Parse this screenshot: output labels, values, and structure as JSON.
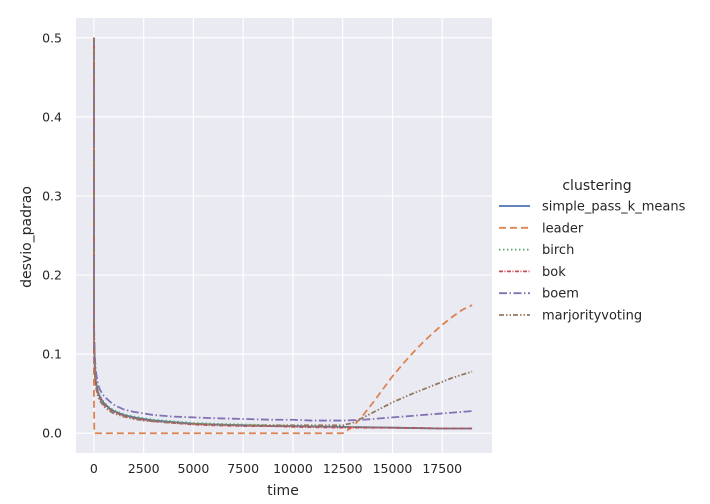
{
  "chart_data": {
    "type": "line",
    "title": "",
    "xlabel": "time",
    "ylabel": "desvio_padrao",
    "xlim": [
      -900,
      20000
    ],
    "ylim": [
      -0.025,
      0.525
    ],
    "xticks": [
      0,
      2500,
      5000,
      7500,
      10000,
      12500,
      15000,
      17500
    ],
    "yticks": [
      0.0,
      0.1,
      0.2,
      0.3,
      0.4,
      0.5
    ],
    "xtick_labels": [
      "0",
      "2500",
      "5000",
      "7500",
      "10000",
      "12500",
      "15000",
      "17500"
    ],
    "ytick_labels": [
      "0.0",
      "0.1",
      "0.2",
      "0.3",
      "0.4",
      "0.5"
    ],
    "grid": true,
    "background": "#eaeaf2",
    "legend": {
      "title": "clustering",
      "position": "right"
    },
    "series": [
      {
        "name": "simple_pass_k_means",
        "color": "#4c72b0",
        "dash": "solid",
        "x": [
          0,
          0,
          50,
          100,
          200,
          300,
          500,
          800,
          1000,
          1500,
          2000,
          2500,
          3000,
          4000,
          5000,
          6000,
          7500,
          9000,
          10000,
          12500,
          15000,
          17500,
          19000
        ],
        "y": [
          0.5,
          0.12,
          0.08,
          0.065,
          0.052,
          0.046,
          0.038,
          0.031,
          0.028,
          0.023,
          0.02,
          0.018,
          0.016,
          0.014,
          0.012,
          0.011,
          0.01,
          0.009,
          0.009,
          0.008,
          0.007,
          0.006,
          0.006
        ]
      },
      {
        "name": "leader",
        "color": "#dd8452",
        "dash": "7,4",
        "x": [
          0,
          0,
          20,
          12500,
          13000,
          13500,
          14000,
          14500,
          15000,
          15500,
          16000,
          16500,
          17000,
          17500,
          18000,
          18500,
          19000
        ],
        "y": [
          0.5,
          0.05,
          0.0,
          0.0,
          0.008,
          0.022,
          0.038,
          0.055,
          0.072,
          0.087,
          0.101,
          0.114,
          0.126,
          0.137,
          0.147,
          0.156,
          0.162
        ]
      },
      {
        "name": "birch",
        "color": "#55a868",
        "dash": "1.5,2.5",
        "x": [
          0,
          0,
          50,
          100,
          200,
          300,
          500,
          800,
          1000,
          1500,
          2000,
          2500,
          3000,
          4000,
          5000,
          6000,
          7500,
          9000,
          10000,
          12500,
          15000,
          17500,
          19000
        ],
        "y": [
          0.5,
          0.13,
          0.085,
          0.068,
          0.054,
          0.047,
          0.039,
          0.032,
          0.029,
          0.024,
          0.021,
          0.019,
          0.017,
          0.015,
          0.013,
          0.012,
          0.011,
          0.01,
          0.009,
          0.008,
          0.007,
          0.006,
          0.006
        ]
      },
      {
        "name": "bok",
        "color": "#c44e52",
        "dash": "4,1.5,1,1.5",
        "x": [
          0,
          0,
          50,
          100,
          200,
          300,
          500,
          800,
          1000,
          1500,
          2000,
          2500,
          3000,
          4000,
          5000,
          6000,
          7500,
          9000,
          10000,
          12500,
          15000,
          17500,
          19000
        ],
        "y": [
          0.5,
          0.12,
          0.078,
          0.062,
          0.05,
          0.044,
          0.036,
          0.03,
          0.027,
          0.022,
          0.019,
          0.017,
          0.015,
          0.013,
          0.011,
          0.01,
          0.009,
          0.009,
          0.008,
          0.007,
          0.007,
          0.006,
          0.006
        ]
      },
      {
        "name": "boem",
        "color": "#8172b3",
        "dash": "8,2.5,1.5,2.5",
        "x": [
          0,
          0,
          50,
          100,
          200,
          300,
          500,
          800,
          1000,
          1500,
          2000,
          2500,
          3000,
          4000,
          5000,
          6000,
          7500,
          9000,
          10000,
          11000,
          12500,
          13500,
          15000,
          16500,
          17500,
          18500,
          19000
        ],
        "y": [
          0.5,
          0.14,
          0.095,
          0.078,
          0.062,
          0.055,
          0.047,
          0.04,
          0.036,
          0.03,
          0.027,
          0.025,
          0.023,
          0.021,
          0.02,
          0.019,
          0.018,
          0.017,
          0.017,
          0.016,
          0.016,
          0.017,
          0.02,
          0.023,
          0.025,
          0.027,
          0.028
        ]
      },
      {
        "name": "marjorityvoting",
        "color": "#937860",
        "dash": "5,2,1.5,2,1.5,2",
        "x": [
          0,
          0,
          50,
          100,
          200,
          300,
          500,
          800,
          1000,
          1500,
          2000,
          2500,
          3000,
          4000,
          5000,
          6000,
          7500,
          9000,
          10000,
          12500,
          13000,
          14000,
          15000,
          16000,
          17000,
          18000,
          19000
        ],
        "y": [
          0.5,
          0.11,
          0.072,
          0.058,
          0.047,
          0.041,
          0.034,
          0.028,
          0.025,
          0.021,
          0.018,
          0.016,
          0.015,
          0.013,
          0.012,
          0.011,
          0.01,
          0.01,
          0.01,
          0.01,
          0.013,
          0.026,
          0.039,
          0.05,
          0.06,
          0.07,
          0.078
        ]
      }
    ]
  }
}
